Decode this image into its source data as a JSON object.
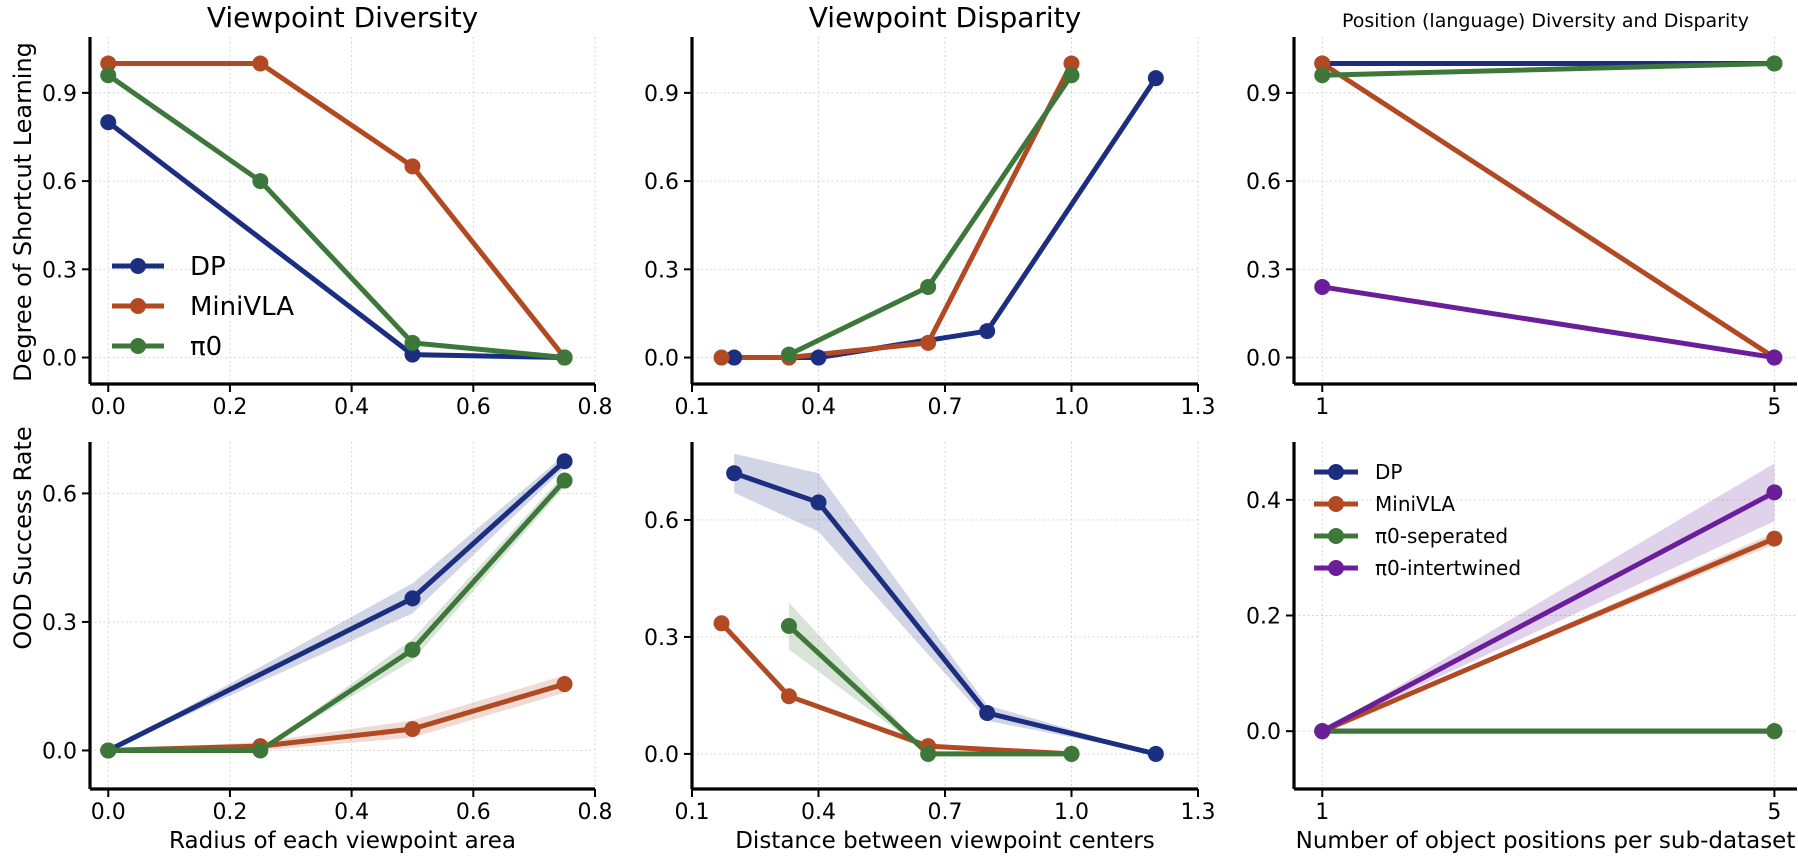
{
  "figure": {
    "row_labels": {
      "top": "Degree of Shortcut Learning",
      "bottom": "OOD Success Rate"
    }
  },
  "colors": {
    "dp": "#1c2e80",
    "minivla": "#b14a23",
    "pi0": "#3e773a",
    "pi0_intertwined": "#6a1e9a"
  },
  "chart_data": [
    {
      "id": "p1",
      "type": "line",
      "title": "Viewpoint Diversity",
      "xlabel": "",
      "ylabel": "Degree of Shortcut Learning",
      "xlim": [
        -0.03,
        0.8
      ],
      "ylim": [
        -0.09,
        1.09
      ],
      "xticks": [
        0.0,
        0.2,
        0.4,
        0.6,
        0.8
      ],
      "xtick_labels": [
        "0.0",
        "0.2",
        "0.4",
        "0.6",
        "0.8"
      ],
      "yticks": [
        0.0,
        0.3,
        0.6,
        0.9
      ],
      "ytick_labels": [
        "0.0",
        "0.3",
        "0.6",
        "0.9"
      ],
      "grid": true,
      "legend": "lower-left",
      "series": [
        {
          "name": "DP",
          "color": "#1c2e80",
          "x": [
            0.0,
            0.5,
            0.75
          ],
          "y": [
            0.8,
            0.01,
            0.0
          ]
        },
        {
          "name": "MiniVLA",
          "color": "#b14a23",
          "x": [
            0.0,
            0.25,
            0.5,
            0.75
          ],
          "y": [
            1.0,
            1.0,
            0.65,
            0.0
          ]
        },
        {
          "name": "π0",
          "color": "#3e773a",
          "x": [
            0.0,
            0.25,
            0.5,
            0.75
          ],
          "y": [
            0.96,
            0.6,
            0.05,
            0.0
          ]
        }
      ]
    },
    {
      "id": "p2",
      "type": "line",
      "title": "Viewpoint Disparity",
      "xlabel": "",
      "ylabel": "",
      "xlim": [
        0.1,
        1.3
      ],
      "ylim": [
        -0.09,
        1.09
      ],
      "xticks": [
        0.1,
        0.4,
        0.7,
        1.0,
        1.3
      ],
      "xtick_labels": [
        "0.1",
        "0.4",
        "0.7",
        "1.0",
        "1.3"
      ],
      "yticks": [
        0.0,
        0.3,
        0.6,
        0.9
      ],
      "ytick_labels": [
        "0.0",
        "0.3",
        "0.6",
        "0.9"
      ],
      "grid": true,
      "legend": "none",
      "series": [
        {
          "name": "DP",
          "color": "#1c2e80",
          "x": [
            0.2,
            0.4,
            0.8,
            1.2
          ],
          "y": [
            0.0,
            0.0,
            0.09,
            0.95
          ]
        },
        {
          "name": "DP",
          "color": "#1c2e80",
          "x": [
            0.4,
            0.66
          ],
          "y": [
            0.0,
            0.06
          ],
          "no_markers": true
        },
        {
          "name": "MiniVLA",
          "color": "#b14a23",
          "x": [
            0.17,
            0.33,
            0.66,
            1.0
          ],
          "y": [
            0.0,
            0.0,
            0.05,
            1.0
          ]
        },
        {
          "name": "π0",
          "color": "#3e773a",
          "x": [
            0.33,
            0.66,
            1.0
          ],
          "y": [
            0.01,
            0.24,
            0.96
          ]
        }
      ]
    },
    {
      "id": "p3",
      "type": "line",
      "title": "Position (language) Diversity and Disparity",
      "xlabel": "",
      "ylabel": "",
      "xlim": [
        0.75,
        5.2
      ],
      "ylim": [
        -0.09,
        1.09
      ],
      "xticks": [
        1,
        5
      ],
      "xtick_labels": [
        "1",
        "5"
      ],
      "yticks": [
        0.0,
        0.3,
        0.6,
        0.9
      ],
      "ytick_labels": [
        "0.0",
        "0.3",
        "0.6",
        "0.9"
      ],
      "grid": true,
      "legend": "none",
      "series": [
        {
          "name": "DP",
          "color": "#1c2e80",
          "x": [
            1,
            5
          ],
          "y": [
            1.0,
            1.0
          ]
        },
        {
          "name": "MiniVLA",
          "color": "#b14a23",
          "x": [
            1,
            5
          ],
          "y": [
            1.0,
            0.0
          ]
        },
        {
          "name": "π0-seperated",
          "color": "#3e773a",
          "x": [
            1,
            5
          ],
          "y": [
            0.96,
            1.0
          ]
        },
        {
          "name": "π0-intertwined",
          "color": "#6a1e9a",
          "x": [
            1,
            5
          ],
          "y": [
            0.24,
            0.0
          ]
        }
      ]
    },
    {
      "id": "p4",
      "type": "line",
      "title": "",
      "xlabel": "Radius of each viewpoint area",
      "ylabel": "OOD Success Rate",
      "xlim": [
        -0.03,
        0.8
      ],
      "ylim": [
        -0.09,
        0.72
      ],
      "xticks": [
        0.0,
        0.2,
        0.4,
        0.6,
        0.8
      ],
      "xtick_labels": [
        "0.0",
        "0.2",
        "0.4",
        "0.6",
        "0.8"
      ],
      "yticks": [
        0.0,
        0.3,
        0.6
      ],
      "ytick_labels": [
        "0.0",
        "0.3",
        "0.6"
      ],
      "grid": true,
      "legend": "none",
      "series": [
        {
          "name": "DP",
          "color": "#1c2e80",
          "x": [
            0.0,
            0.5,
            0.75
          ],
          "y": [
            0.0,
            0.355,
            0.675
          ],
          "band": [
            0.0,
            0.035,
            0.015
          ]
        },
        {
          "name": "MiniVLA",
          "color": "#b14a23",
          "x": [
            0.0,
            0.25,
            0.5,
            0.75
          ],
          "y": [
            0.0,
            0.01,
            0.05,
            0.155
          ],
          "band": [
            0.0,
            0.01,
            0.02,
            0.02
          ]
        },
        {
          "name": "π0",
          "color": "#3e773a",
          "x": [
            0.0,
            0.25,
            0.5,
            0.75
          ],
          "y": [
            0.0,
            0.0,
            0.235,
            0.63
          ],
          "band": [
            0.0,
            0.0,
            0.025,
            0.015
          ]
        }
      ]
    },
    {
      "id": "p5",
      "type": "line",
      "title": "",
      "xlabel": "Distance between viewpoint centers",
      "ylabel": "",
      "xlim": [
        0.1,
        1.3
      ],
      "ylim": [
        -0.09,
        0.8
      ],
      "xticks": [
        0.1,
        0.4,
        0.7,
        1.0,
        1.3
      ],
      "xtick_labels": [
        "0.1",
        "0.4",
        "0.7",
        "1.0",
        "1.3"
      ],
      "yticks": [
        0.0,
        0.3,
        0.6
      ],
      "ytick_labels": [
        "0.0",
        "0.3",
        "0.6"
      ],
      "grid": true,
      "legend": "none",
      "series": [
        {
          "name": "DP",
          "color": "#1c2e80",
          "x": [
            0.2,
            0.4,
            0.8,
            1.2
          ],
          "y": [
            0.72,
            0.645,
            0.105,
            0.0
          ],
          "band": [
            0.05,
            0.075,
            0.02,
            0.0
          ]
        },
        {
          "name": "MiniVLA",
          "color": "#b14a23",
          "x": [
            0.17,
            0.33,
            0.66,
            1.0
          ],
          "y": [
            0.335,
            0.148,
            0.02,
            0.0
          ],
          "band": [
            0.0,
            0.0,
            0.0,
            0.0
          ]
        },
        {
          "name": "π0",
          "color": "#3e773a",
          "x": [
            0.33,
            0.66,
            1.0
          ],
          "y": [
            0.328,
            0.0,
            0.0
          ],
          "band": [
            0.06,
            0.0,
            0.0
          ]
        }
      ]
    },
    {
      "id": "p6",
      "type": "line",
      "title": "",
      "xlabel": "Number of object positions per sub-dataset",
      "ylabel": "",
      "xlim": [
        0.75,
        5.2
      ],
      "ylim": [
        -0.1,
        0.5
      ],
      "xticks": [
        1,
        5
      ],
      "xtick_labels": [
        "1",
        "5"
      ],
      "yticks": [
        0.0,
        0.2,
        0.4
      ],
      "ytick_labels": [
        "0.0",
        "0.2",
        "0.4"
      ],
      "grid": true,
      "legend": "top-left",
      "series": [
        {
          "name": "DP",
          "color": "#1c2e80",
          "x": [
            1,
            5
          ],
          "y": [
            0.0,
            0.0
          ],
          "band": [
            0,
            0
          ]
        },
        {
          "name": "MiniVLA",
          "color": "#b14a23",
          "x": [
            1,
            5
          ],
          "y": [
            0.0,
            0.333
          ],
          "band": [
            0,
            0.01
          ]
        },
        {
          "name": "π0-seperated",
          "color": "#3e773a",
          "x": [
            1,
            5
          ],
          "y": [
            0.0,
            0.0
          ],
          "band": [
            0,
            0
          ]
        },
        {
          "name": "π0-intertwined",
          "color": "#6a1e9a",
          "x": [
            1,
            5
          ],
          "y": [
            0.0,
            0.413
          ],
          "band": [
            0,
            0.05
          ]
        }
      ]
    }
  ]
}
